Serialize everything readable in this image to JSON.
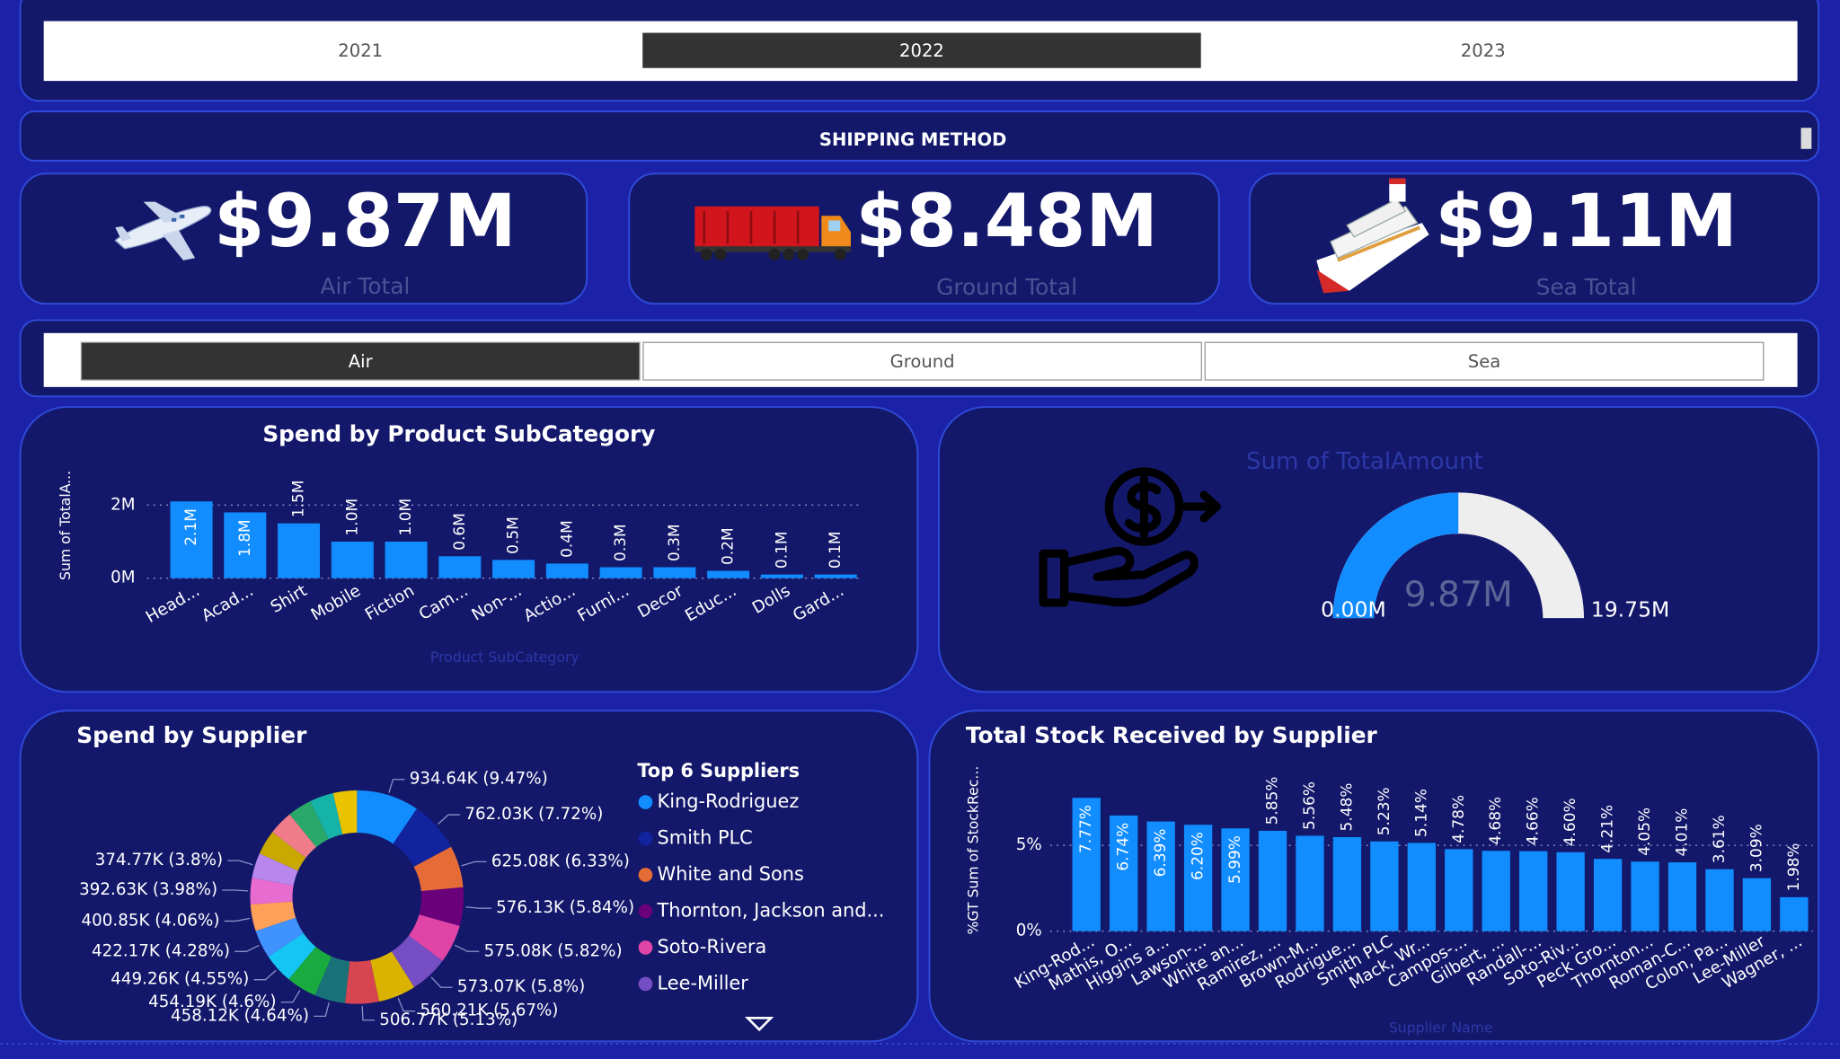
{
  "year_slicer": {
    "options": [
      "2021",
      "2022",
      "2023"
    ],
    "selected": 1
  },
  "shipping_header": "SHIPPING METHOD",
  "kpis": [
    {
      "value": "$9.87M",
      "label": "Air Total"
    },
    {
      "value": "$8.48M",
      "label": "Ground Total"
    },
    {
      "value": "$9.11M",
      "label": "Sea Total"
    }
  ],
  "method_slicer": {
    "options": [
      "Air",
      "Ground",
      "Sea"
    ],
    "selected": 0
  },
  "chart_data": [
    {
      "type": "bar",
      "title": "Spend by Product SubCategory",
      "y_label": "Sum of TotalA...",
      "x_label": "Product SubCategory",
      "categories": [
        "Head...",
        "Acad...",
        "Shirt",
        "Mobile",
        "Fiction",
        "Cam...",
        "Non-...",
        "Actio...",
        "Furni...",
        "Decor",
        "Educ...",
        "Dolls",
        "Gard..."
      ],
      "values": [
        2.1,
        1.8,
        1.5,
        1.0,
        1.0,
        0.6,
        0.5,
        0.4,
        0.3,
        0.3,
        0.2,
        0.1,
        0.1
      ],
      "value_labels": [
        "2.1M",
        "1.8M",
        "1.5M",
        "1.0M",
        "1.0M",
        "0.6M",
        "0.5M",
        "0.4M",
        "0.3M",
        "0.3M",
        "0.2M",
        "0.1M",
        "0.1M"
      ],
      "color": "#118dff",
      "ylim": [
        0,
        2.6
      ],
      "yticks": [
        {
          "value": 0,
          "label": "0M"
        },
        {
          "value": 2,
          "label": "2M"
        }
      ],
      "grid": true
    },
    {
      "type": "gauge",
      "title": "Sum of TotalAmount",
      "value": 9.87,
      "value_label": "9.87M",
      "min": {
        "value": 0,
        "label": "0.00M"
      },
      "max": {
        "value": 19.75,
        "label": "19.75M"
      },
      "color": "#118dff",
      "track_color": "#eeeeee"
    },
    {
      "type": "donut",
      "title": "Spend by Supplier",
      "legend_title": "Top 6 Suppliers",
      "categories": [
        "King-Rodriguez",
        "Smith PLC",
        "White and Sons",
        "Thornton, Jackson and...",
        "Soto-Rivera",
        "Lee-Miller",
        null,
        null,
        null,
        null,
        null,
        null,
        null,
        null,
        null,
        null,
        null,
        null,
        null,
        null
      ],
      "values": [
        934.64,
        762.03,
        625.08,
        576.13,
        575.08,
        573.07,
        560.21,
        506.77,
        458.12,
        454.19,
        449.26,
        422.17,
        400.85,
        392.63,
        374.77,
        370,
        365,
        360,
        358,
        354
      ],
      "value_labels": [
        "934.64K (9.47%)",
        "762.03K (7.72%)",
        "625.08K (6.33%)",
        "576.13K (5.84%)",
        "575.08K (5.82%)",
        "573.07K (5.8%)",
        "560.21K (5.67%)",
        "506.77K (5.13%)",
        "458.12K (4.64%)",
        "454.19K (4.6%)",
        "449.26K (4.55%)",
        "422.17K (4.28%)",
        "400.85K (4.06%)",
        "392.63K (3.98%)",
        "374.77K (3.8%)",
        null,
        null,
        null,
        null,
        null
      ],
      "colors": [
        "#118dff",
        "#12239e",
        "#e66c37",
        "#6b007b",
        "#e044a7",
        "#744ec2",
        "#d9b300",
        "#d64550",
        "#197278",
        "#1aab40",
        "#15c6f4",
        "#4092ff",
        "#ffa058",
        "#e86bd0",
        "#b887ee",
        "#c9a800",
        "#f07c8a",
        "#2aa86a",
        "#16b3a8",
        "#e9c300"
      ]
    },
    {
      "type": "bar",
      "title": "Total Stock Received by Supplier",
      "y_label": "%GT Sum of StockRec...",
      "x_label": "Supplier Name",
      "categories": [
        "King-Rod...",
        "Mathis, O...",
        "Higgins a...",
        "Lawson-...",
        "White an...",
        "Ramirez, ...",
        "Brown-M...",
        "Rodrigue...",
        "Smith PLC",
        "Mack, Wr...",
        "Campos-...",
        "Gilbert, ...",
        "Randall-...",
        "Soto-Riv...",
        "Peck Gro...",
        "Thornton...",
        "Roman-C...",
        "Colon, Pa...",
        "Lee-Miller",
        "Wagner, ..."
      ],
      "values": [
        7.77,
        6.74,
        6.39,
        6.2,
        5.99,
        5.85,
        5.56,
        5.48,
        5.23,
        5.14,
        4.78,
        4.68,
        4.66,
        4.6,
        4.21,
        4.05,
        4.01,
        3.61,
        3.09,
        1.98
      ],
      "value_labels": [
        "7.77%",
        "6.74%",
        "6.39%",
        "6.20%",
        "5.99%",
        "5.85%",
        "5.56%",
        "5.48%",
        "5.23%",
        "5.14%",
        "4.78%",
        "4.68%",
        "4.66%",
        "4.60%",
        "4.21%",
        "4.05%",
        "4.01%",
        "3.61%",
        "3.09%",
        "1.98%"
      ],
      "color": "#118dff",
      "ylim": [
        0,
        9.5
      ],
      "yticks": [
        {
          "value": 0,
          "label": "0%"
        },
        {
          "value": 5,
          "label": "5%"
        }
      ],
      "grid": true
    }
  ]
}
